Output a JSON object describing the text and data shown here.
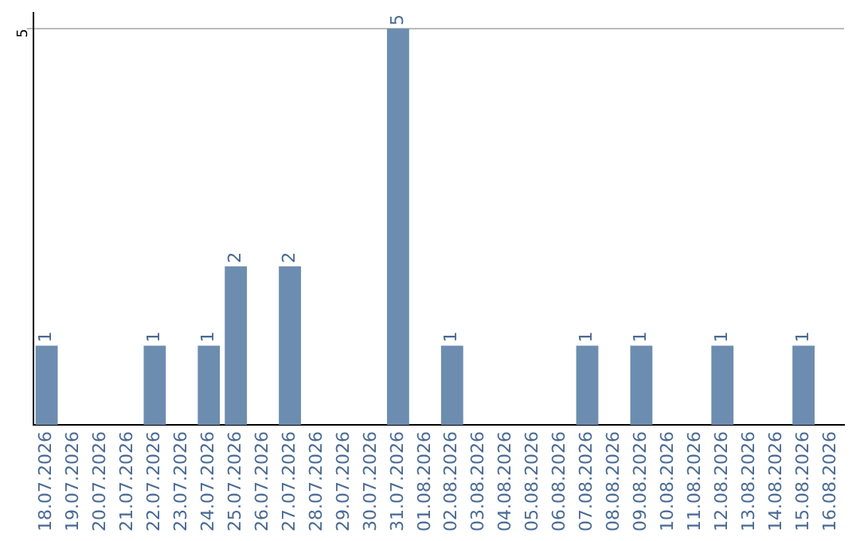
{
  "chart_data": {
    "type": "bar",
    "categories": [
      "18.07.2026",
      "19.07.2026",
      "20.07.2026",
      "21.07.2026",
      "22.07.2026",
      "23.07.2026",
      "24.07.2026",
      "25.07.2026",
      "26.07.2026",
      "27.07.2026",
      "28.07.2026",
      "29.07.2026",
      "30.07.2026",
      "31.07.2026",
      "01.08.2026",
      "02.08.2026",
      "03.08.2026",
      "04.08.2026",
      "05.08.2026",
      "06.08.2026",
      "07.08.2026",
      "08.08.2026",
      "09.08.2026",
      "10.08.2026",
      "11.08.2026",
      "12.08.2026",
      "13.08.2026",
      "14.08.2026",
      "15.08.2026",
      "16.08.2026"
    ],
    "values": [
      1,
      0,
      0,
      0,
      1,
      0,
      1,
      2,
      0,
      2,
      0,
      0,
      0,
      5,
      0,
      1,
      0,
      0,
      0,
      0,
      1,
      0,
      1,
      0,
      0,
      1,
      0,
      0,
      1,
      0
    ],
    "color": "#6d8db0",
    "value_labels": [
      "1",
      null,
      null,
      null,
      "1",
      null,
      "1",
      "2",
      null,
      "2",
      null,
      null,
      null,
      "5",
      null,
      "1",
      null,
      null,
      null,
      null,
      "1",
      null,
      "1",
      null,
      null,
      "1",
      null,
      null,
      "1",
      null
    ],
    "ylim": [
      0,
      5.2
    ],
    "yticks": [
      5
    ],
    "grid": "y",
    "legend": false
  }
}
